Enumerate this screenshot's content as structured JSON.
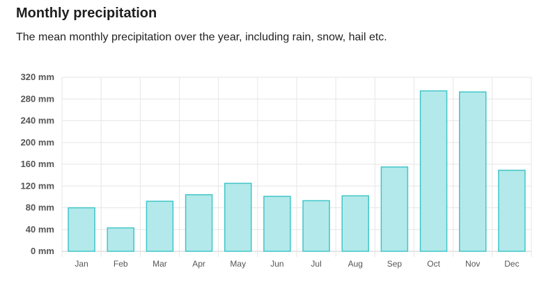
{
  "header": {
    "title": "Monthly precipitation",
    "subtitle": "The mean monthly precipitation over the year, including rain, snow, hail etc."
  },
  "chart_data": {
    "type": "bar",
    "categories": [
      "Jan",
      "Feb",
      "Mar",
      "Apr",
      "May",
      "Jun",
      "Jul",
      "Aug",
      "Sep",
      "Oct",
      "Nov",
      "Dec"
    ],
    "values": [
      80,
      43,
      92,
      104,
      125,
      101,
      93,
      102,
      155,
      295,
      293,
      149
    ],
    "unit": "mm",
    "yticks": [
      0,
      40,
      80,
      120,
      160,
      200,
      240,
      280,
      320
    ],
    "ytick_labels": [
      "0 mm",
      "40 mm",
      "80 mm",
      "120 mm",
      "160 mm",
      "200 mm",
      "240 mm",
      "280 mm",
      "320 mm"
    ],
    "ylim": [
      0,
      320
    ],
    "grid": true,
    "colors": {
      "bar_fill": "#b3e9ea",
      "bar_stroke": "#40c5c8",
      "grid": "#e6e6e6",
      "axis": "#cccccc"
    }
  }
}
